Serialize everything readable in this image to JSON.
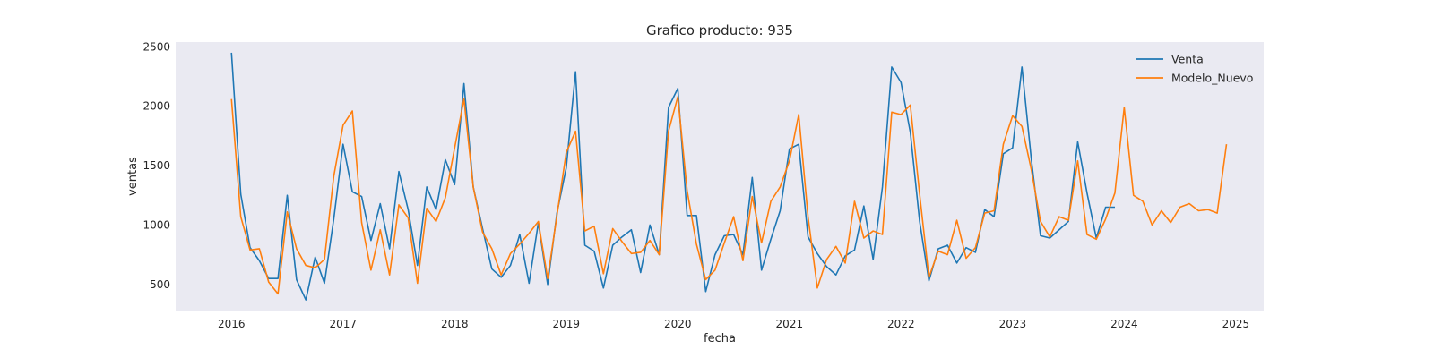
{
  "chart_data": {
    "type": "line",
    "title": "Grafico producto: 935",
    "xlabel": "fecha",
    "ylabel": "ventas",
    "xlim": [
      "2015-07-01",
      "2025-04-01"
    ],
    "ylim": [
      280,
      2540
    ],
    "x_ticks": [
      "2016",
      "2017",
      "2018",
      "2019",
      "2020",
      "2021",
      "2022",
      "2023",
      "2024",
      "2025"
    ],
    "y_ticks": [
      500,
      1000,
      1500,
      2000,
      2500
    ],
    "grid": false,
    "legend": "top-right",
    "background_color": "#eaeaf2",
    "series": [
      {
        "name": "Venta",
        "color": "#1f77b4",
        "start": "2016-01",
        "values": [
          2450,
          1260,
          810,
          700,
          550,
          550,
          1250,
          540,
          370,
          730,
          510,
          1050,
          1680,
          1280,
          1240,
          870,
          1180,
          800,
          1450,
          1130,
          660,
          1320,
          1130,
          1550,
          1340,
          2190,
          1320,
          970,
          630,
          560,
          660,
          920,
          510,
          1020,
          500,
          1100,
          1480,
          2290,
          830,
          780,
          470,
          830,
          900,
          960,
          600,
          1000,
          750,
          1990,
          2150,
          1080,
          1080,
          440,
          750,
          910,
          920,
          750,
          1400,
          620,
          880,
          1120,
          1640,
          1680,
          900,
          760,
          650,
          580,
          740,
          790,
          1160,
          710,
          1320,
          2330,
          2200,
          1780,
          1030,
          530,
          800,
          830,
          680,
          810,
          770,
          1130,
          1070,
          1600,
          1650,
          2330,
          1560,
          910,
          890,
          960,
          1030,
          1700,
          1270,
          890,
          1150,
          1150
        ]
      },
      {
        "name": "Modelo_Nuevo",
        "color": "#ff7f0e",
        "start": "2016-01",
        "values": [
          2060,
          1070,
          790,
          800,
          520,
          420,
          1110,
          800,
          660,
          640,
          710,
          1410,
          1840,
          1960,
          1020,
          620,
          960,
          580,
          1170,
          1060,
          510,
          1140,
          1030,
          1230,
          1650,
          2060,
          1320,
          940,
          800,
          580,
          760,
          840,
          930,
          1030,
          550,
          1080,
          1610,
          1790,
          950,
          990,
          590,
          970,
          860,
          760,
          770,
          870,
          750,
          1790,
          2080,
          1290,
          840,
          540,
          620,
          850,
          1070,
          700,
          1240,
          850,
          1200,
          1320,
          1540,
          1930,
          1070,
          470,
          710,
          820,
          680,
          1200,
          890,
          950,
          920,
          1950,
          1930,
          2010,
          1260,
          560,
          780,
          750,
          1040,
          720,
          810,
          1100,
          1120,
          1680,
          1920,
          1830,
          1470,
          1030,
          900,
          1070,
          1040,
          1540,
          920,
          880,
          1050,
          1270,
          1990,
          1250,
          1200,
          1000,
          1120,
          1020,
          1150,
          1180,
          1120,
          1130,
          1100,
          1680
        ]
      }
    ]
  }
}
